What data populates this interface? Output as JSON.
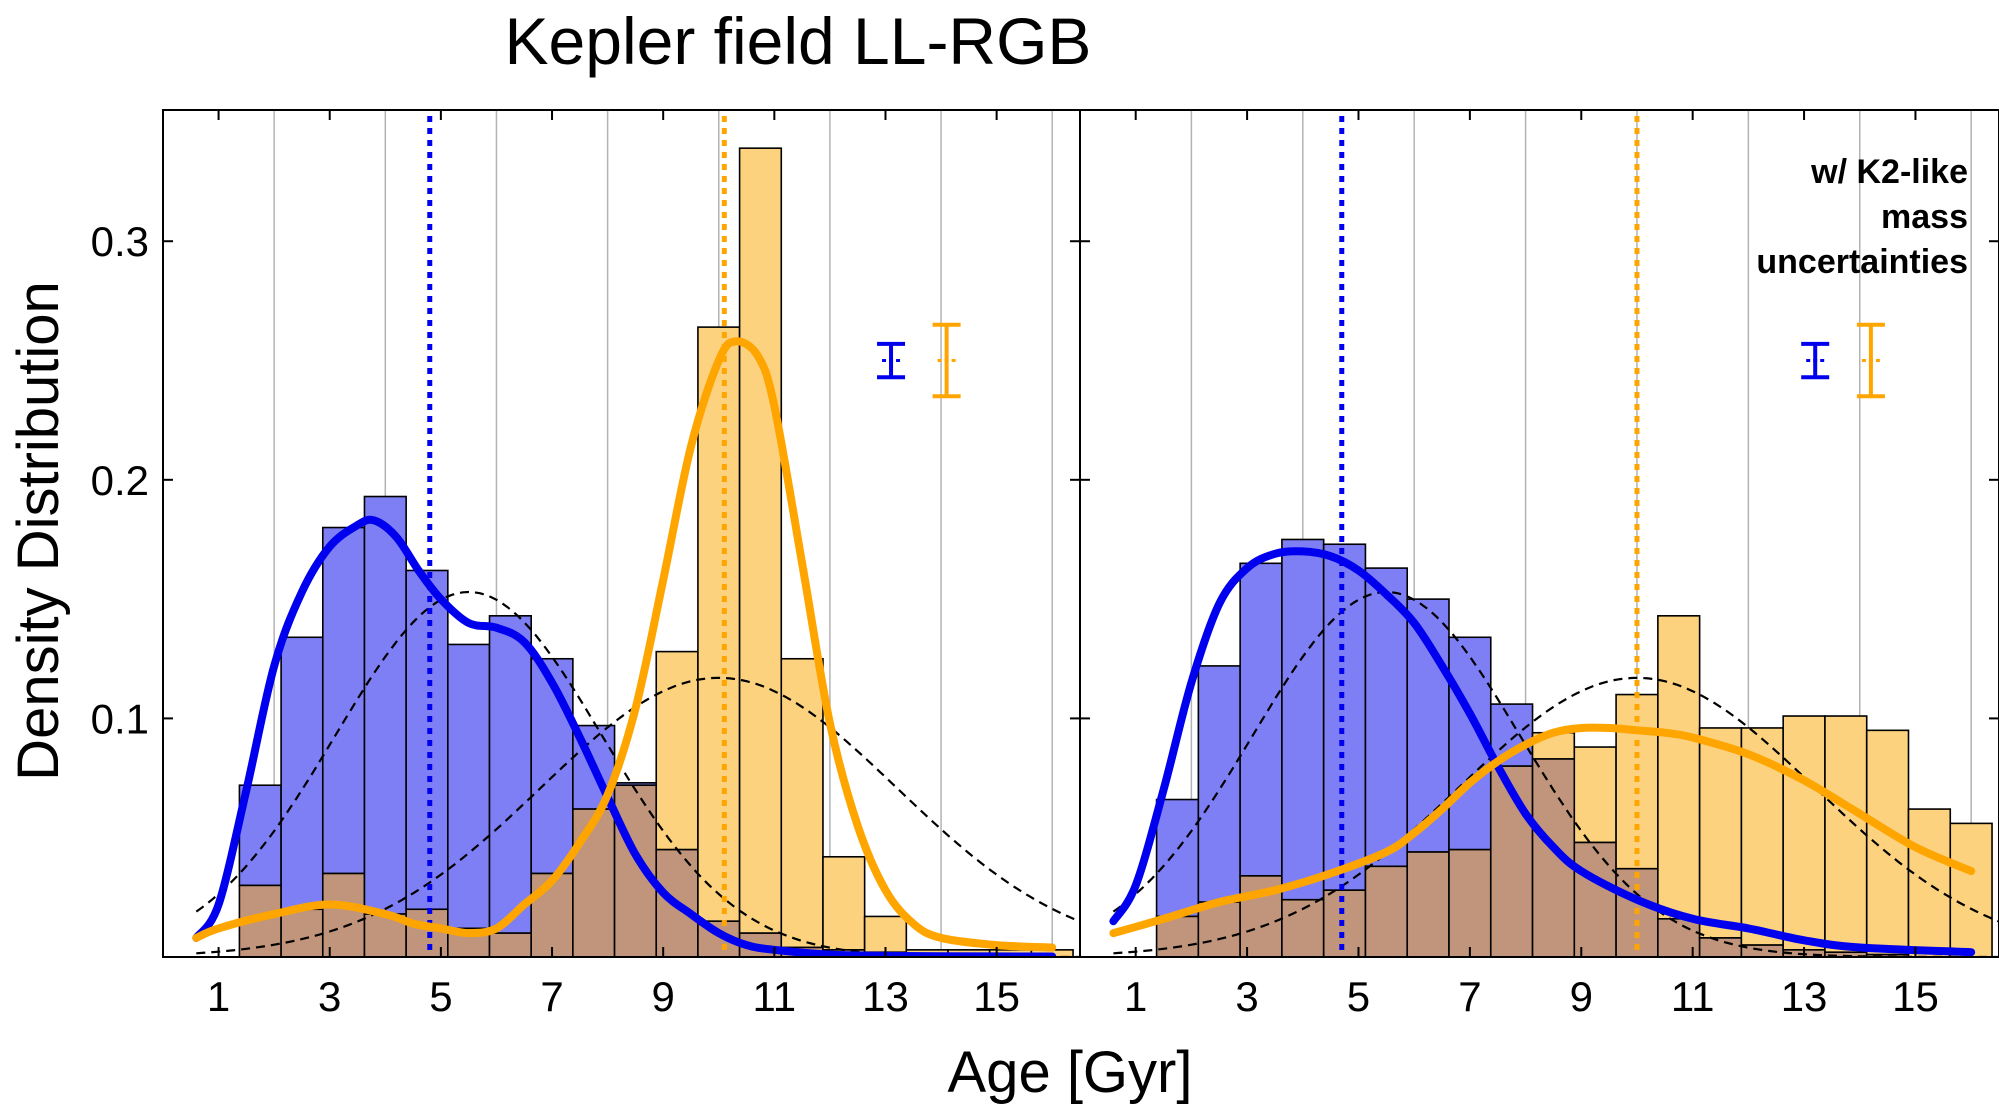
{
  "title": "Kepler field LL-RGB",
  "xlabel": "Age [Gyr]",
  "ylabel": "Density Distribution",
  "colors": {
    "blue": "#0000ee",
    "orange": "#ffa500",
    "blue_fill": "#7f7ff5",
    "orange_fill": "#fcd27e",
    "overlap_fill": "#c1957b",
    "dashed": "#000000",
    "grid": "#b3b3b3"
  },
  "chart_data": [
    {
      "type": "bar",
      "panel": "left",
      "annotation": "",
      "xlim": [
        0,
        16.5
      ],
      "ylim": [
        0,
        0.355
      ],
      "xticks": [
        1,
        3,
        5,
        7,
        9,
        11,
        13,
        15
      ],
      "yticks": [
        0.1,
        0.2,
        0.3
      ],
      "ytick_labels": [
        "0.1",
        "0.2",
        "0.3"
      ],
      "grid": "vertical",
      "bin_width": 0.75,
      "bin_start": 1.375,
      "blue_hist": [
        0.072,
        0.134,
        0.18,
        0.193,
        0.162,
        0.131,
        0.143,
        0.125,
        0.097,
        0.073,
        0.045,
        0.015,
        0.01,
        0.004,
        0.003,
        0.002,
        0.001,
        0,
        0,
        0
      ],
      "orange_hist": [
        0.03,
        0.02,
        0.035,
        0.018,
        0.02,
        0.012,
        0.01,
        0.035,
        0.062,
        0.072,
        0.128,
        0.264,
        0.339,
        0.125,
        0.042,
        0.017,
        0.003,
        0.003,
        0.003,
        0.003
      ],
      "blue_kde": {
        "x": [
          0.6,
          1,
          1.5,
          2,
          2.5,
          3,
          3.5,
          3.8,
          4.2,
          4.6,
          5,
          5.5,
          6,
          6.5,
          7,
          7.5,
          8,
          8.5,
          9,
          9.5,
          10,
          10.5,
          11,
          12,
          13,
          14,
          16
        ],
        "y": [
          0.008,
          0.022,
          0.07,
          0.122,
          0.153,
          0.172,
          0.181,
          0.183,
          0.176,
          0.162,
          0.15,
          0.14,
          0.138,
          0.132,
          0.115,
          0.092,
          0.067,
          0.043,
          0.027,
          0.018,
          0.01,
          0.005,
          0.003,
          0.001,
          0.0005,
          0.0003,
          0.0002
        ]
      },
      "orange_kde": {
        "x": [
          0.6,
          1,
          2,
          3,
          4,
          4.5,
          5,
          5.5,
          6,
          6.5,
          7,
          7.5,
          8,
          8.5,
          9,
          9.5,
          10,
          10.3,
          10.7,
          11,
          11.5,
          12,
          12.5,
          13,
          13.5,
          14,
          15,
          16
        ],
        "y": [
          0.008,
          0.012,
          0.018,
          0.022,
          0.018,
          0.014,
          0.012,
          0.01,
          0.012,
          0.022,
          0.032,
          0.048,
          0.068,
          0.104,
          0.158,
          0.214,
          0.25,
          0.258,
          0.252,
          0.231,
          0.165,
          0.098,
          0.055,
          0.028,
          0.014,
          0.008,
          0.005,
          0.004
        ]
      },
      "gaussians": [
        {
          "mean": 5.5,
          "sigma": 2.4,
          "peak": 0.153
        },
        {
          "mean": 10.0,
          "sigma": 3.2,
          "peak": 0.117
        }
      ],
      "blue_median": 4.8,
      "orange_median": 10.1,
      "errorbars": [
        {
          "color": "blue",
          "x": 13.1,
          "y": 0.25,
          "half": 0.007
        },
        {
          "color": "orange",
          "x": 14.1,
          "y": 0.25,
          "half": 0.015
        }
      ]
    },
    {
      "type": "bar",
      "panel": "right",
      "annotation": [
        "w/ K2-like",
        "mass",
        "uncertainties"
      ],
      "xlim": [
        0,
        16.5
      ],
      "ylim": [
        0,
        0.355
      ],
      "xticks": [
        1,
        3,
        5,
        7,
        9,
        11,
        13,
        15
      ],
      "yticks": [
        0.1,
        0.2,
        0.3
      ],
      "ytick_labels": [
        "",
        "",
        ""
      ],
      "grid": "vertical",
      "bin_width": 0.75,
      "bin_start": 1.375,
      "blue_hist": [
        0.066,
        0.122,
        0.165,
        0.175,
        0.173,
        0.163,
        0.15,
        0.134,
        0.106,
        0.083,
        0.048,
        0.037,
        0.016,
        0.008,
        0.005,
        0.003,
        0.002,
        0.001,
        0,
        0
      ],
      "orange_hist": [
        0.017,
        0.023,
        0.034,
        0.024,
        0.028,
        0.038,
        0.044,
        0.045,
        0.08,
        0.094,
        0.088,
        0.11,
        0.143,
        0.096,
        0.096,
        0.101,
        0.101,
        0.095,
        0.062,
        0.056
      ],
      "blue_kde": {
        "x": [
          0.6,
          1,
          1.5,
          2,
          2.5,
          3,
          3.5,
          4,
          4.5,
          5,
          5.5,
          6,
          6.5,
          7,
          7.5,
          8,
          8.5,
          9,
          10,
          11,
          12,
          13,
          14,
          16
        ],
        "y": [
          0.015,
          0.03,
          0.07,
          0.115,
          0.148,
          0.163,
          0.169,
          0.17,
          0.168,
          0.162,
          0.152,
          0.14,
          0.122,
          0.102,
          0.08,
          0.06,
          0.046,
          0.036,
          0.024,
          0.016,
          0.012,
          0.007,
          0.004,
          0.002
        ]
      },
      "orange_kde": {
        "x": [
          0.6,
          1.5,
          2.5,
          3.5,
          4.5,
          5.5,
          6,
          6.5,
          7,
          7.5,
          8,
          8.5,
          9,
          9.5,
          10,
          10.5,
          11,
          12,
          13,
          14,
          15,
          16
        ],
        "y": [
          0.01,
          0.016,
          0.023,
          0.028,
          0.035,
          0.044,
          0.052,
          0.062,
          0.073,
          0.082,
          0.089,
          0.094,
          0.096,
          0.096,
          0.095,
          0.094,
          0.092,
          0.085,
          0.074,
          0.06,
          0.046,
          0.036
        ]
      },
      "gaussians": [
        {
          "mean": 5.5,
          "sigma": 2.4,
          "peak": 0.153
        },
        {
          "mean": 10.0,
          "sigma": 3.2,
          "peak": 0.117
        }
      ],
      "blue_median": 4.7,
      "orange_median": 10.0,
      "errorbars": [
        {
          "color": "blue",
          "x": 13.2,
          "y": 0.25,
          "half": 0.007
        },
        {
          "color": "orange",
          "x": 14.2,
          "y": 0.25,
          "half": 0.015
        }
      ]
    }
  ]
}
